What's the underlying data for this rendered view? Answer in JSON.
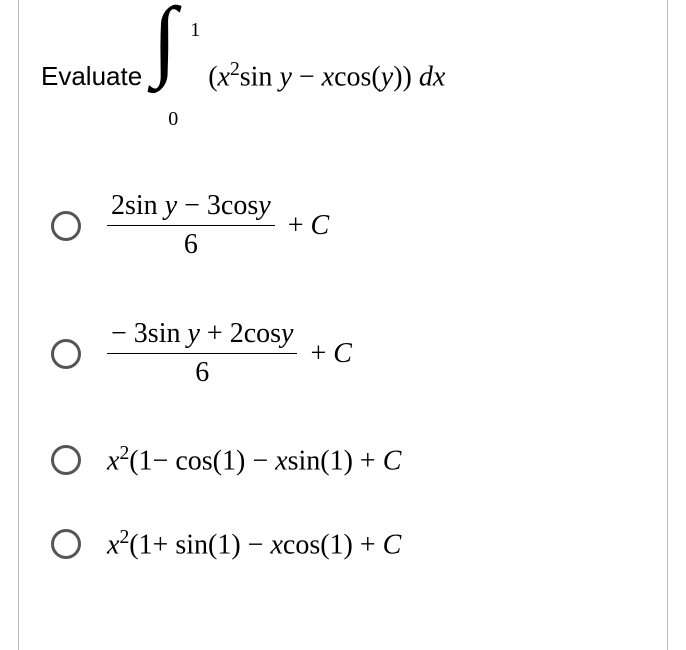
{
  "prompt": {
    "label": "Evaluate",
    "integral": {
      "upper": "1",
      "lower": "0",
      "integrand": "(x²sin y − xcos(y)) dx"
    }
  },
  "choices": [
    {
      "type": "fraction",
      "numerator": "2sin y − 3cosy",
      "denominator": "6",
      "rest": " + C"
    },
    {
      "type": "fraction",
      "numerator": "− 3sin y + 2cosy",
      "denominator": "6",
      "rest": " + C"
    },
    {
      "type": "plain",
      "text": "x²(1− cos(1) − xsin(1) + C"
    },
    {
      "type": "plain",
      "text": "x²(1+ sin(1) − xcos(1) + C"
    }
  ],
  "styles": {
    "font_family": "Times New Roman",
    "question_font_size_pt": 28,
    "radio_border_color": "#555555",
    "text_color": "#000000",
    "background_color": "#ffffff",
    "container_border_color": "#bbbbbb"
  }
}
